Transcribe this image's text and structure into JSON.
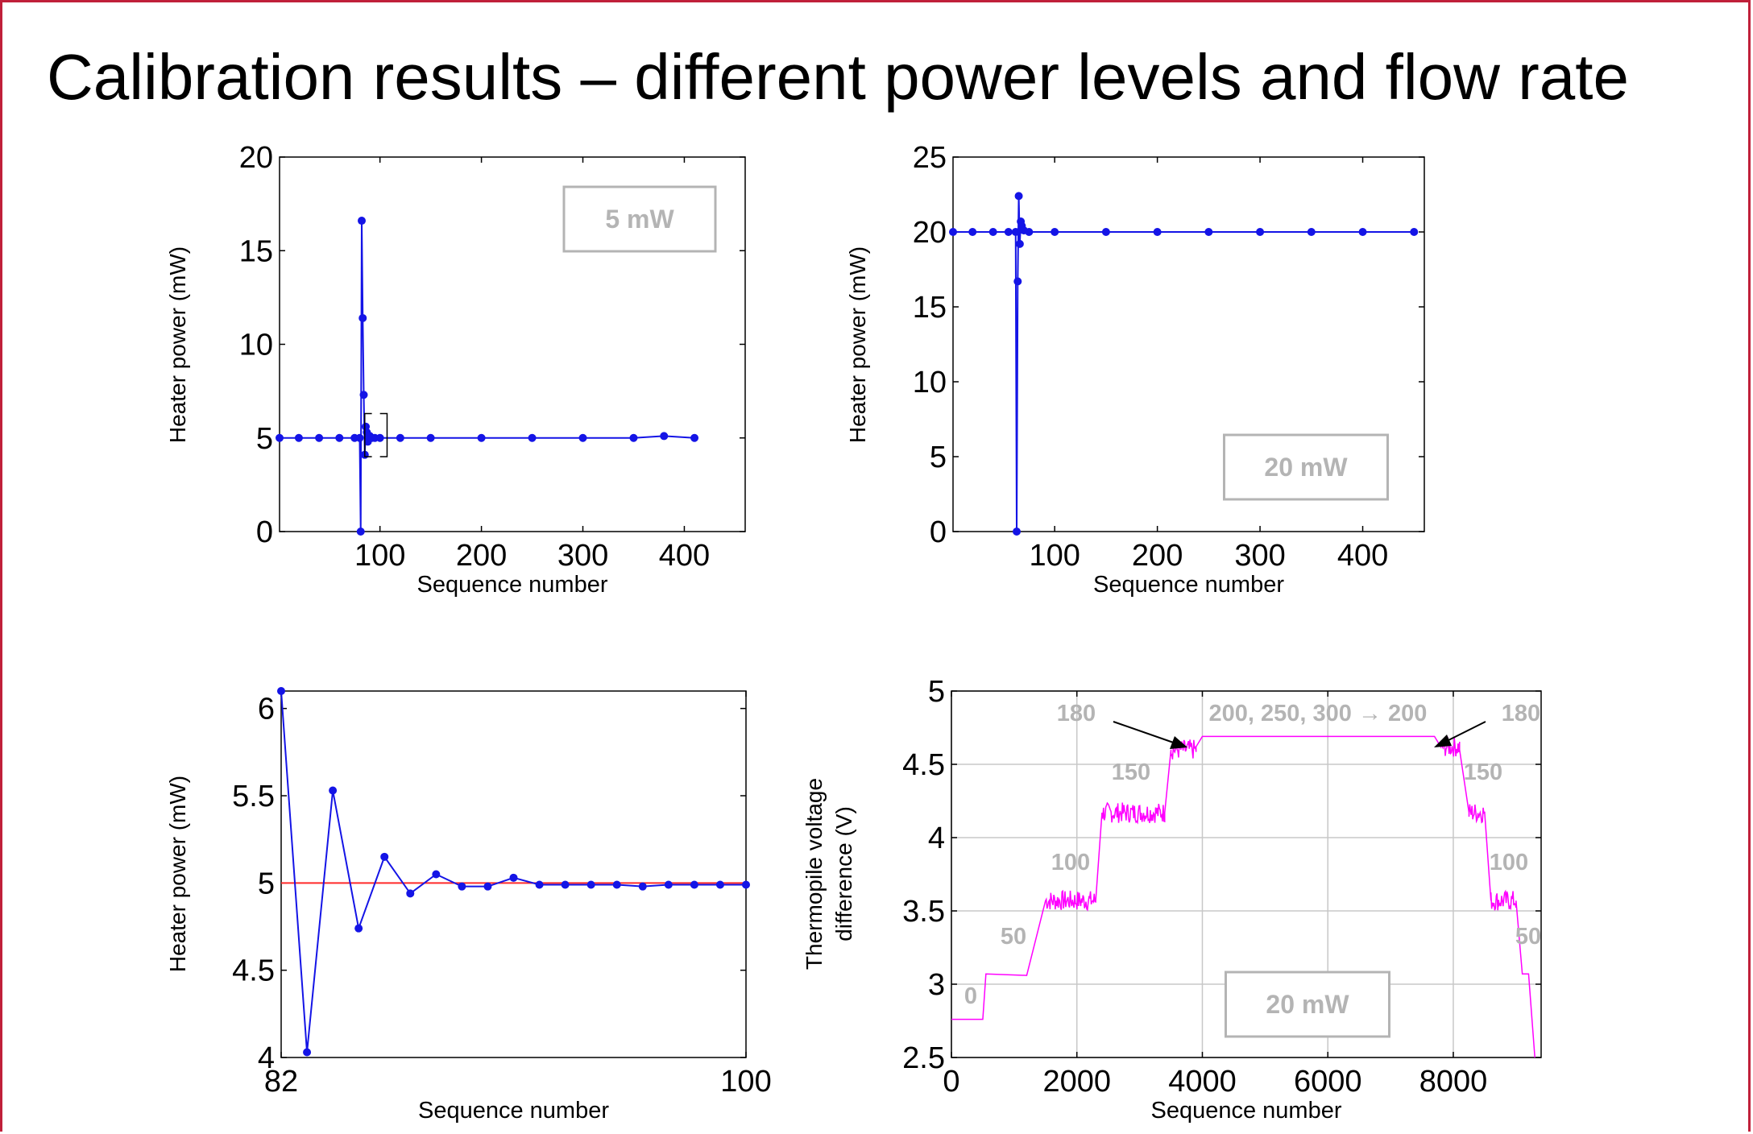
{
  "slide": {
    "title": "Calibration results – different power levels and flow rate",
    "colors": {
      "frame": "#c0203a",
      "series": "#1414e6",
      "reference": "#ff2a2a",
      "thermopile": "#ff00ff",
      "annotation": "#b4b4b4"
    }
  },
  "chart_data": [
    {
      "type": "scatter",
      "title": "",
      "xlabel": "Sequence number",
      "ylabel": "Heater power (mW)",
      "xlim": [
        1,
        460
      ],
      "ylim": [
        0,
        20
      ],
      "xticks": [
        100,
        200,
        300,
        400
      ],
      "yticks": [
        0,
        5,
        10,
        15,
        20
      ],
      "annotation": "5 mW",
      "series": [
        {
          "marker": "dot",
          "x": [
            1,
            20,
            40,
            60,
            75,
            80,
            81,
            82,
            83,
            84,
            85,
            86,
            87,
            88,
            90,
            92,
            95,
            100,
            120,
            150,
            200,
            250,
            300,
            350,
            380,
            410
          ],
          "y": [
            5,
            5,
            5,
            5,
            5,
            5,
            0,
            16.6,
            11.4,
            7.3,
            4.1,
            5.6,
            5.3,
            4.8,
            5.1,
            5.0,
            5.0,
            5.0,
            5.0,
            5.0,
            5.0,
            5.0,
            5.0,
            5.0,
            5.1,
            5.0
          ]
        }
      ]
    },
    {
      "type": "scatter",
      "title": "",
      "xlabel": "Sequence number",
      "ylabel": "Heater power (mW)",
      "xlim": [
        1,
        460
      ],
      "ylim": [
        0,
        25
      ],
      "xticks": [
        100,
        200,
        300,
        400
      ],
      "yticks": [
        0,
        5,
        10,
        15,
        20,
        25
      ],
      "annotation": "20 mW",
      "series": [
        {
          "marker": "dot",
          "x": [
            1,
            20,
            40,
            55,
            62,
            63,
            64,
            65,
            66,
            67,
            68,
            70,
            75,
            100,
            150,
            200,
            250,
            300,
            350,
            400,
            450
          ],
          "y": [
            20,
            20,
            20,
            20,
            20,
            0,
            16.7,
            22.4,
            19.2,
            20.7,
            20.4,
            20.1,
            20,
            20,
            20,
            20,
            20,
            20,
            20,
            20,
            20
          ]
        }
      ]
    },
    {
      "type": "line",
      "title": "",
      "xlabel": "Sequence number",
      "ylabel": "Heater power (mW)",
      "xlim": [
        82,
        100
      ],
      "ylim": [
        4,
        6.1
      ],
      "xticks": [
        82,
        100
      ],
      "yticks": [
        4,
        4.5,
        5,
        5.5,
        6
      ],
      "reference_line": 5,
      "series": [
        {
          "marker": "dot",
          "x": [
            82,
            83,
            84,
            85,
            86,
            87,
            88,
            89,
            90,
            91,
            92,
            93,
            94,
            95,
            96,
            97,
            98,
            99,
            100
          ],
          "y": [
            6.1,
            4.03,
            5.53,
            4.74,
            5.15,
            4.94,
            5.05,
            4.98,
            4.98,
            5.03,
            4.99,
            4.99,
            4.99,
            4.99,
            4.98,
            4.99,
            4.99,
            4.99,
            4.99
          ]
        }
      ]
    },
    {
      "type": "line",
      "title": "",
      "xlabel": "Sequence number",
      "ylabel": "Thermopile voltage difference (V)",
      "xlim": [
        0,
        9400
      ],
      "ylim": [
        2.5,
        5
      ],
      "xticks": [
        0,
        2000,
        4000,
        6000,
        8000
      ],
      "yticks": [
        2.5,
        3,
        3.5,
        4,
        4.5,
        5
      ],
      "grid": true,
      "annotation": "20 mW",
      "series": [
        {
          "x": [
            0,
            500,
            550,
            1200,
            1500,
            2300,
            2400,
            3400,
            3500,
            3900,
            4000,
            7700,
            7800,
            8100,
            8250,
            8500,
            8600,
            9000,
            9100,
            9200,
            9300
          ],
          "y": [
            2.76,
            2.76,
            3.07,
            3.06,
            3.57,
            3.57,
            4.17,
            4.17,
            4.6,
            4.62,
            4.69,
            4.69,
            4.62,
            4.6,
            4.17,
            4.17,
            3.57,
            3.57,
            3.07,
            3.07,
            2.5
          ]
        }
      ],
      "labels": {
        "f0": "0",
        "f50_left": "50",
        "f100_left": "100",
        "f150_left": "150",
        "f180_left": "180",
        "f_top": "200, 250, 300 → 200",
        "f180_right": "180",
        "f150_right": "150",
        "f100_right": "100",
        "f50_right": "50"
      }
    }
  ]
}
